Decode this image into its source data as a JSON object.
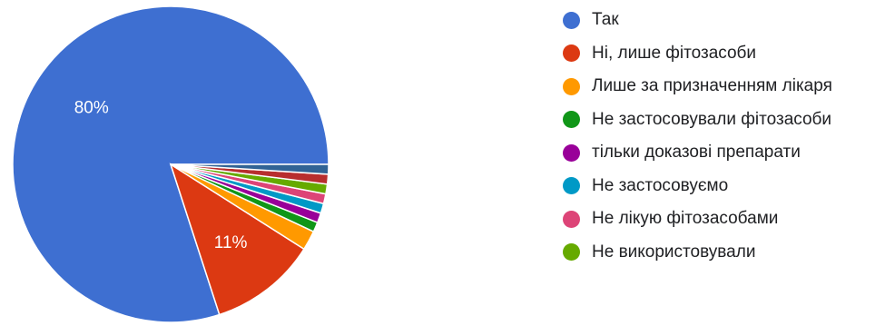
{
  "chart_data": {
    "type": "pie",
    "title": "",
    "slices": [
      {
        "label": "Так",
        "value": 80,
        "color": "#3e6fd1",
        "display": "80%"
      },
      {
        "label": "Ні, лише фітозасоби",
        "value": 11,
        "color": "#dc3912",
        "display": "11%"
      },
      {
        "label": "Лише за призначенням лікаря",
        "value": 2,
        "color": "#ff9900",
        "display": ""
      },
      {
        "label": "Не застосовували фітозасоби",
        "value": 1,
        "color": "#109618",
        "display": ""
      },
      {
        "label": "тільки доказові препарати",
        "value": 1,
        "color": "#990099",
        "display": ""
      },
      {
        "label": "Не застосовуємо",
        "value": 1,
        "color": "#0099c6",
        "display": ""
      },
      {
        "label": "Не лікую фітозасобами",
        "value": 1,
        "color": "#dd4477",
        "display": ""
      },
      {
        "label": "Не використовували",
        "value": 1,
        "color": "#66aa00",
        "display": ""
      },
      {
        "label": "",
        "value": 1,
        "color": "#b82e2e",
        "display": ""
      },
      {
        "label": "",
        "value": 1,
        "color": "#316395",
        "display": ""
      }
    ],
    "legend_position": "right"
  }
}
